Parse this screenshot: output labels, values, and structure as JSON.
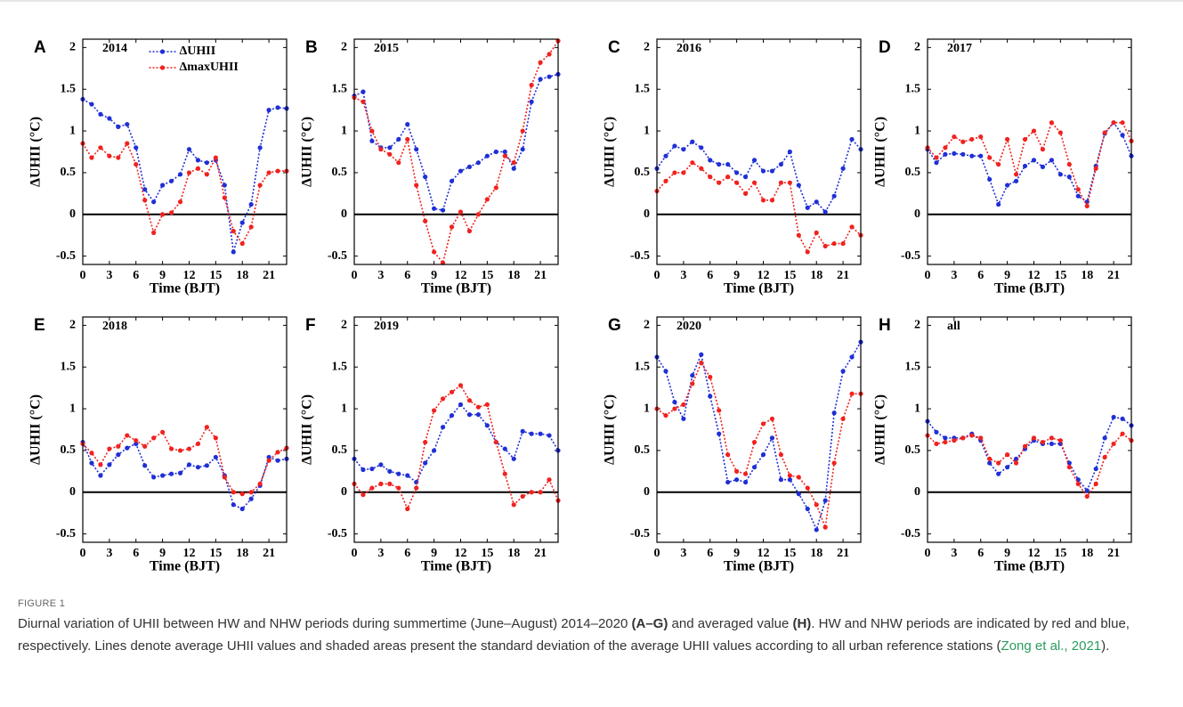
{
  "chart_data": [
    {
      "type": "line",
      "panel": "A",
      "title": "2014",
      "xlabel": "Time (BJT)",
      "ylabel": "ΔUHII (°C)",
      "legend": "upper center",
      "x": [
        0,
        1,
        2,
        3,
        4,
        5,
        6,
        7,
        8,
        9,
        10,
        11,
        12,
        13,
        14,
        15,
        16,
        17,
        18,
        19,
        20,
        21,
        22,
        23
      ],
      "xlim": [
        0,
        23
      ],
      "xticks": [
        0,
        3,
        6,
        9,
        12,
        15,
        18,
        21
      ],
      "ylim": [
        -0.6,
        2.1
      ],
      "yticks": [
        -0.5,
        0,
        0.5,
        1,
        1.5,
        2
      ],
      "series": [
        {
          "name": "ΔUHII",
          "color": "#1f2fd6",
          "values": [
            1.38,
            1.32,
            1.2,
            1.15,
            1.05,
            1.08,
            0.8,
            0.3,
            0.15,
            0.35,
            0.4,
            0.48,
            0.78,
            0.65,
            0.62,
            0.65,
            0.35,
            -0.45,
            -0.1,
            0.12,
            0.8,
            1.25,
            1.28,
            1.27
          ]
        },
        {
          "name": "ΔmaxUHII",
          "color": "#f0221f",
          "values": [
            0.85,
            0.68,
            0.8,
            0.7,
            0.68,
            0.85,
            0.6,
            0.17,
            -0.22,
            0,
            0.02,
            0.15,
            0.5,
            0.55,
            0.48,
            0.68,
            0.2,
            -0.2,
            -0.35,
            -0.15,
            0.35,
            0.5,
            0.52,
            0.52
          ]
        }
      ]
    },
    {
      "type": "line",
      "panel": "B",
      "title": "2015",
      "xlabel": "Time (BJT)",
      "ylabel": "ΔUHII (°C)",
      "x": [
        0,
        1,
        2,
        3,
        4,
        5,
        6,
        7,
        8,
        9,
        10,
        11,
        12,
        13,
        14,
        15,
        16,
        17,
        18,
        19,
        20,
        21,
        22,
        23
      ],
      "xlim": [
        0,
        23
      ],
      "xticks": [
        0,
        3,
        6,
        9,
        12,
        15,
        18,
        21
      ],
      "ylim": [
        -0.6,
        2.1
      ],
      "yticks": [
        -0.5,
        0,
        0.5,
        1,
        1.5,
        2
      ],
      "series": [
        {
          "name": "ΔUHII",
          "color": "#1f2fd6",
          "values": [
            1.42,
            1.47,
            0.88,
            0.8,
            0.8,
            0.9,
            1.08,
            0.78,
            0.45,
            0.07,
            0.05,
            0.4,
            0.52,
            0.57,
            0.62,
            0.7,
            0.75,
            0.75,
            0.55,
            0.78,
            1.35,
            1.62,
            1.65,
            1.68
          ]
        },
        {
          "name": "ΔmaxUHII",
          "color": "#f0221f",
          "values": [
            1.4,
            1.35,
            1.0,
            0.78,
            0.72,
            0.62,
            0.9,
            0.35,
            -0.08,
            -0.45,
            -0.58,
            -0.15,
            0.03,
            -0.2,
            0,
            0.18,
            0.32,
            0.7,
            0.62,
            1.0,
            1.55,
            1.82,
            1.92,
            2.08
          ]
        }
      ]
    },
    {
      "type": "line",
      "panel": "C",
      "title": "2016",
      "xlabel": "Time (BJT)",
      "ylabel": "ΔUHII (°C)",
      "x": [
        0,
        1,
        2,
        3,
        4,
        5,
        6,
        7,
        8,
        9,
        10,
        11,
        12,
        13,
        14,
        15,
        16,
        17,
        18,
        19,
        20,
        21,
        22,
        23
      ],
      "xlim": [
        0,
        23
      ],
      "xticks": [
        0,
        3,
        6,
        9,
        12,
        15,
        18,
        21
      ],
      "ylim": [
        -0.6,
        2.1
      ],
      "yticks": [
        -0.5,
        0,
        0.5,
        1,
        1.5,
        2
      ],
      "series": [
        {
          "name": "ΔUHII",
          "color": "#1f2fd6",
          "values": [
            0.55,
            0.7,
            0.82,
            0.78,
            0.87,
            0.8,
            0.65,
            0.6,
            0.6,
            0.5,
            0.45,
            0.65,
            0.52,
            0.52,
            0.6,
            0.75,
            0.35,
            0.08,
            0.15,
            0.03,
            0.22,
            0.55,
            0.9,
            0.78
          ]
        },
        {
          "name": "ΔmaxUHII",
          "color": "#f0221f",
          "values": [
            0.28,
            0.4,
            0.5,
            0.5,
            0.62,
            0.55,
            0.45,
            0.38,
            0.45,
            0.38,
            0.25,
            0.38,
            0.17,
            0.17,
            0.38,
            0.38,
            -0.25,
            -0.45,
            -0.22,
            -0.38,
            -0.35,
            -0.35,
            -0.15,
            -0.25
          ]
        }
      ]
    },
    {
      "type": "line",
      "panel": "D",
      "title": "2017",
      "xlabel": "Time (BJT)",
      "ylabel": "ΔUHII (°C)",
      "x": [
        0,
        1,
        2,
        3,
        4,
        5,
        6,
        7,
        8,
        9,
        10,
        11,
        12,
        13,
        14,
        15,
        16,
        17,
        18,
        19,
        20,
        21,
        22,
        23
      ],
      "xlim": [
        0,
        23
      ],
      "xticks": [
        0,
        3,
        6,
        9,
        12,
        15,
        18,
        21
      ],
      "ylim": [
        -0.6,
        2.1
      ],
      "yticks": [
        -0.5,
        0,
        0.5,
        1,
        1.5,
        2
      ],
      "series": [
        {
          "name": "ΔUHII",
          "color": "#1f2fd6",
          "values": [
            0.78,
            0.62,
            0.72,
            0.73,
            0.72,
            0.7,
            0.7,
            0.42,
            0.12,
            0.35,
            0.4,
            0.58,
            0.65,
            0.57,
            0.65,
            0.48,
            0.45,
            0.22,
            0.15,
            0.58,
            0.97,
            1.1,
            0.95,
            0.7
          ]
        },
        {
          "name": "ΔmaxUHII",
          "color": "#f0221f",
          "values": [
            0.8,
            0.68,
            0.8,
            0.93,
            0.87,
            0.9,
            0.93,
            0.68,
            0.6,
            0.9,
            0.48,
            0.9,
            1.0,
            0.78,
            1.1,
            0.98,
            0.6,
            0.3,
            0.1,
            0.55,
            0.98,
            1.1,
            1.1,
            0.88
          ]
        }
      ]
    },
    {
      "type": "line",
      "panel": "E",
      "title": "2018",
      "xlabel": "Time (BJT)",
      "ylabel": "ΔUHII (°C)",
      "x": [
        0,
        1,
        2,
        3,
        4,
        5,
        6,
        7,
        8,
        9,
        10,
        11,
        12,
        13,
        14,
        15,
        16,
        17,
        18,
        19,
        20,
        21,
        22,
        23
      ],
      "xlim": [
        0,
        23
      ],
      "xticks": [
        0,
        3,
        6,
        9,
        12,
        15,
        18,
        21
      ],
      "ylim": [
        -0.6,
        2.1
      ],
      "yticks": [
        -0.5,
        0,
        0.5,
        1,
        1.5,
        2
      ],
      "series": [
        {
          "name": "ΔUHII",
          "color": "#1f2fd6",
          "values": [
            0.6,
            0.35,
            0.2,
            0.33,
            0.45,
            0.53,
            0.58,
            0.32,
            0.18,
            0.2,
            0.22,
            0.23,
            0.33,
            0.3,
            0.32,
            0.42,
            0.2,
            -0.15,
            -0.2,
            -0.08,
            0.08,
            0.42,
            0.38,
            0.4
          ]
        },
        {
          "name": "ΔmaxUHII",
          "color": "#f0221f",
          "values": [
            0.58,
            0.47,
            0.33,
            0.52,
            0.55,
            0.68,
            0.62,
            0.55,
            0.65,
            0.72,
            0.52,
            0.5,
            0.52,
            0.58,
            0.78,
            0.65,
            0.18,
            0,
            -0.02,
            0,
            0.1,
            0.38,
            0.48,
            0.53
          ]
        }
      ]
    },
    {
      "type": "line",
      "panel": "F",
      "title": "2019",
      "xlabel": "Time (BJT)",
      "ylabel": "ΔUHII (°C)",
      "x": [
        0,
        1,
        2,
        3,
        4,
        5,
        6,
        7,
        8,
        9,
        10,
        11,
        12,
        13,
        14,
        15,
        16,
        17,
        18,
        19,
        20,
        21,
        22,
        23
      ],
      "xlim": [
        0,
        23
      ],
      "xticks": [
        0,
        3,
        6,
        9,
        12,
        15,
        18,
        21
      ],
      "ylim": [
        -0.6,
        2.1
      ],
      "yticks": [
        -0.5,
        0,
        0.5,
        1,
        1.5,
        2
      ],
      "series": [
        {
          "name": "ΔUHII",
          "color": "#1f2fd6",
          "values": [
            0.4,
            0.27,
            0.28,
            0.33,
            0.25,
            0.22,
            0.2,
            0.12,
            0.35,
            0.5,
            0.78,
            0.92,
            1.05,
            0.93,
            0.93,
            0.8,
            0.6,
            0.52,
            0.4,
            0.73,
            0.7,
            0.7,
            0.68,
            0.5
          ]
        },
        {
          "name": "ΔmaxUHII",
          "color": "#f0221f",
          "values": [
            0.1,
            -0.03,
            0.05,
            0.1,
            0.1,
            0.05,
            -0.2,
            0.05,
            0.6,
            0.98,
            1.12,
            1.2,
            1.28,
            1.1,
            1.02,
            1.05,
            0.6,
            0.22,
            -0.15,
            -0.05,
            0,
            0,
            0.15,
            -0.1
          ]
        }
      ]
    },
    {
      "type": "line",
      "panel": "G",
      "title": "2020",
      "xlabel": "Time (BJT)",
      "ylabel": "ΔUHII (°C)",
      "x": [
        0,
        1,
        2,
        3,
        4,
        5,
        6,
        7,
        8,
        9,
        10,
        11,
        12,
        13,
        14,
        15,
        16,
        17,
        18,
        19,
        20,
        21,
        22,
        23
      ],
      "xlim": [
        0,
        23
      ],
      "xticks": [
        0,
        3,
        6,
        9,
        12,
        15,
        18,
        21
      ],
      "ylim": [
        -0.6,
        2.1
      ],
      "yticks": [
        -0.5,
        0,
        0.5,
        1,
        1.5,
        2
      ],
      "series": [
        {
          "name": "ΔUHII",
          "color": "#1f2fd6",
          "values": [
            1.62,
            1.45,
            1.08,
            0.88,
            1.4,
            1.65,
            1.15,
            0.7,
            0.12,
            0.15,
            0.12,
            0.3,
            0.45,
            0.65,
            0.15,
            0.15,
            -0.02,
            -0.2,
            -0.45,
            -0.1,
            0.95,
            1.45,
            1.62,
            1.8
          ]
        },
        {
          "name": "ΔmaxUHII",
          "color": "#f0221f",
          "values": [
            1.0,
            0.92,
            1.0,
            1.05,
            1.3,
            1.55,
            1.38,
            0.98,
            0.45,
            0.25,
            0.22,
            0.6,
            0.82,
            0.88,
            0.45,
            0.2,
            0.18,
            0.05,
            -0.15,
            -0.42,
            0.35,
            0.88,
            1.18,
            1.18
          ]
        }
      ]
    },
    {
      "type": "line",
      "panel": "H",
      "title": "all",
      "xlabel": "Time (BJT)",
      "ylabel": "ΔUHII (°C)",
      "x": [
        0,
        1,
        2,
        3,
        4,
        5,
        6,
        7,
        8,
        9,
        10,
        11,
        12,
        13,
        14,
        15,
        16,
        17,
        18,
        19,
        20,
        21,
        22,
        23
      ],
      "xlim": [
        0,
        23
      ],
      "xticks": [
        0,
        3,
        6,
        9,
        12,
        15,
        18,
        21
      ],
      "ylim": [
        -0.6,
        2.1
      ],
      "yticks": [
        -0.5,
        0,
        0.5,
        1,
        1.5,
        2
      ],
      "series": [
        {
          "name": "ΔUHII",
          "color": "#1f2fd6",
          "values": [
            0.85,
            0.72,
            0.65,
            0.65,
            0.65,
            0.7,
            0.62,
            0.35,
            0.22,
            0.3,
            0.4,
            0.52,
            0.62,
            0.58,
            0.58,
            0.58,
            0.35,
            0.15,
            0.02,
            0.28,
            0.65,
            0.9,
            0.88,
            0.8
          ]
        },
        {
          "name": "ΔmaxUHII",
          "color": "#f0221f",
          "values": [
            0.68,
            0.58,
            0.6,
            0.62,
            0.65,
            0.68,
            0.65,
            0.4,
            0.35,
            0.45,
            0.35,
            0.55,
            0.65,
            0.6,
            0.65,
            0.62,
            0.3,
            0.1,
            -0.05,
            0.1,
            0.42,
            0.58,
            0.7,
            0.62
          ]
        }
      ]
    }
  ],
  "caption": {
    "label": "FIGURE 1",
    "parts": [
      {
        "text": "Diurnal variation of UHII between HW and NHW periods during summertime (June–August) 2014–2020 "
      },
      {
        "text": "(A–G)",
        "bold": true
      },
      {
        "text": " and averaged value "
      },
      {
        "text": "(H)",
        "bold": true
      },
      {
        "text": ". HW and NHW periods are indicated by red and blue, respectively. Lines denote average UHII values and shaded areas present the standard deviation of the average UHII values according to all urban reference stations ("
      },
      {
        "text": "Zong et al., 2021",
        "link": true
      },
      {
        "text": ")."
      }
    ]
  }
}
